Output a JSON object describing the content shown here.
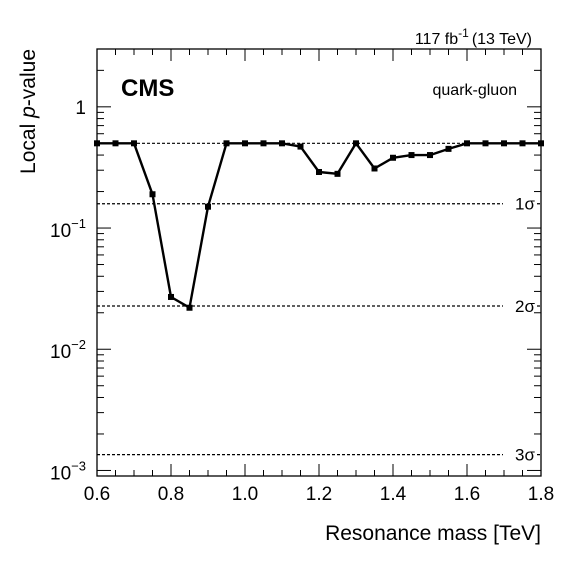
{
  "chart_data": {
    "type": "line",
    "experiment": "CMS",
    "luminosity": {
      "value": "117 fb",
      "exponent": "-1",
      "energy": "(13 TeV)"
    },
    "channel": "quark-gluon",
    "xlabel": "Resonance mass [TeV]",
    "ylabel": {
      "prefix": "Local ",
      "italic": "p",
      "suffix": "-value"
    },
    "xlim": [
      0.6,
      1.8
    ],
    "ylim": [
      0.0009,
      3
    ],
    "yscale": "log",
    "xticks": [
      {
        "value": 0.6,
        "label": "0.6"
      },
      {
        "value": 0.8,
        "label": "0.8"
      },
      {
        "value": 1.0,
        "label": "1.0"
      },
      {
        "value": 1.2,
        "label": "1.2"
      },
      {
        "value": 1.4,
        "label": "1.4"
      },
      {
        "value": 1.6,
        "label": "1.6"
      },
      {
        "value": 1.8,
        "label": "1.8"
      }
    ],
    "yticks": [
      {
        "value": 1,
        "base": "1",
        "exp": ""
      },
      {
        "value": 0.1,
        "base": "10",
        "exp": "−1"
      },
      {
        "value": 0.01,
        "base": "10",
        "exp": "−2"
      },
      {
        "value": 0.001,
        "base": "10",
        "exp": "−3"
      }
    ],
    "sigma_lines": [
      {
        "value": 0.5,
        "label": ""
      },
      {
        "value": 0.1587,
        "label": "1σ"
      },
      {
        "value": 0.02275,
        "label": "2σ"
      },
      {
        "value": 0.00135,
        "label": "3σ"
      }
    ],
    "series": [
      {
        "x": [
          0.6,
          0.65,
          0.7,
          0.75,
          0.8,
          0.85,
          0.9,
          0.95,
          1.0,
          1.05,
          1.1,
          1.15,
          1.2,
          1.25,
          1.3,
          1.35,
          1.4,
          1.45,
          1.5,
          1.55,
          1.6,
          1.65,
          1.7,
          1.75,
          1.8
        ],
        "y": [
          0.5,
          0.5,
          0.5,
          0.19,
          0.027,
          0.022,
          0.15,
          0.5,
          0.5,
          0.5,
          0.5,
          0.47,
          0.29,
          0.28,
          0.5,
          0.31,
          0.38,
          0.4,
          0.4,
          0.45,
          0.5,
          0.5,
          0.5,
          0.5,
          0.5
        ]
      }
    ]
  }
}
